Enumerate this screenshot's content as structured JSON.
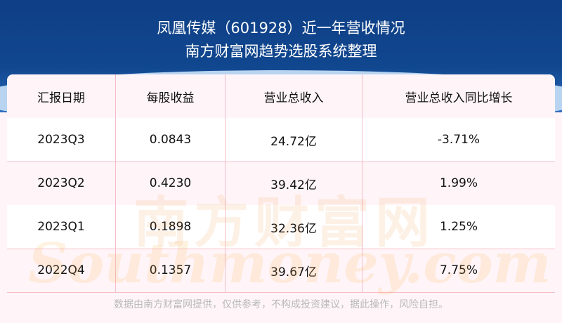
{
  "header": {
    "title": "凤凰传媒（601928）近一年营收情况",
    "subtitle": "南方财富网趋势选股系统整理"
  },
  "table": {
    "columns": [
      "汇报日期",
      "每股收益",
      "营业总收入",
      "营业总收入同比增长"
    ],
    "rows": [
      [
        "2023Q3",
        "0.0843",
        "24.72亿",
        "-3.71%"
      ],
      [
        "2023Q2",
        "0.4230",
        "39.42亿",
        "1.99%"
      ],
      [
        "2023Q1",
        "0.1898",
        "32.36亿",
        "1.25%"
      ],
      [
        "2022Q4",
        "0.1357",
        "39.67亿",
        "7.75%"
      ]
    ]
  },
  "watermark": {
    "cn": "南方财富网",
    "en": "Southmoney.com"
  },
  "footer": {
    "disclaimer": "数据由南方财富网提供，仅供参考，不构成投资建议，据此操作，风险自担。"
  },
  "colors": {
    "banner": "#10478f",
    "grid_line": "#f5bcc8",
    "header_bg": "#fff5f8"
  }
}
